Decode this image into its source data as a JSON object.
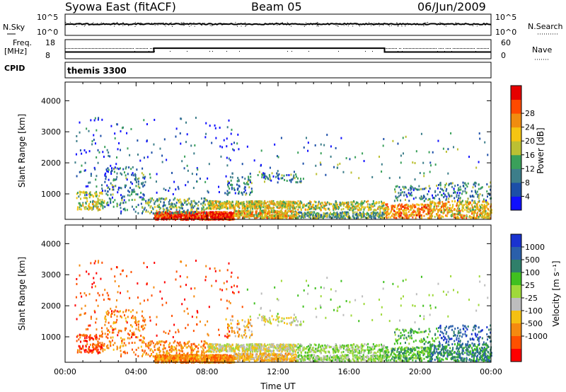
{
  "header": {
    "station": "Syowa East (fitACF)",
    "beam": "Beam 05",
    "date": "06/Jun/2009"
  },
  "top_panels": {
    "nsky_label": "N.Sky",
    "nsearch_label": "N.Search",
    "noise_ticks": [
      "10^5",
      "10^0"
    ],
    "freq_label": "Freq.",
    "freq_unit": "[MHz]",
    "freq_ticks": [
      "18",
      "8"
    ],
    "nave_label": "Nave",
    "nave_ticks": [
      "60",
      "0"
    ],
    "cpid_label": "CPID",
    "cpid_value": "themis 3300"
  },
  "colors": {
    "power_scale": [
      "#1010ff",
      "#1c4fa8",
      "#3d7e8a",
      "#3aa05a",
      "#bcc033",
      "#f5c512",
      "#f08c10",
      "#ff4a00",
      "#e60000"
    ],
    "velocity_scale": [
      "#ff0000",
      "#ff5000",
      "#f58a10",
      "#f5c012",
      "#bdbdbd",
      "#9fd93a",
      "#40c020",
      "#2f7f6a",
      "#2a5faa",
      "#1a33d0"
    ]
  },
  "chart_data": [
    {
      "type": "heatmap",
      "name": "power-panel",
      "xlabel": "",
      "ylabel": "Slant Range [km]",
      "y_ticks": [
        "1000",
        "2000",
        "3000",
        "4000"
      ],
      "ylim": [
        180,
        4600
      ],
      "xlim_hours": [
        0,
        24
      ],
      "colorbar_label": "Power [dB]",
      "colorbar_ticks": [
        "4",
        "8",
        "12",
        "16",
        "20",
        "24",
        "28"
      ]
    },
    {
      "type": "heatmap",
      "name": "velocity-panel",
      "xlabel": "Time UT",
      "ylabel": "Slant Range [km]",
      "x_ticks": [
        "00:00",
        "04:00",
        "08:00",
        "12:00",
        "16:00",
        "20:00",
        "00:00"
      ],
      "y_ticks": [
        "1000",
        "2000",
        "3000",
        "4000"
      ],
      "ylim": [
        180,
        4600
      ],
      "xlim_hours": [
        0,
        24
      ],
      "colorbar_label": "Velocity [m s⁻¹]",
      "colorbar_ticks": [
        "1000",
        "500",
        "100",
        "25",
        "-25",
        "-100",
        "-500",
        "-1000"
      ]
    },
    {
      "type": "line",
      "name": "frequency-trace",
      "x_hours": [
        0,
        5,
        5,
        18,
        18,
        24
      ],
      "freq_mhz": [
        11.5,
        11.5,
        13.5,
        13.5,
        11.5,
        11.5
      ]
    }
  ]
}
